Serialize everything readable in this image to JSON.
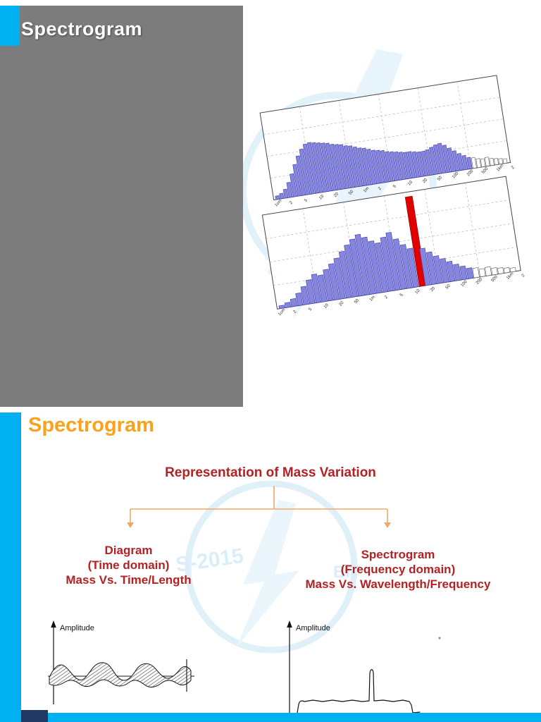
{
  "colors": {
    "cyan": "#00B0F0",
    "gray": "#7C7C7C",
    "orange": "#FAA21B",
    "darkred": "#B22222",
    "connector": "#F0A868",
    "navy": "#1F3864",
    "watermark": "#D2EAF7"
  },
  "slide1": {
    "title": "Spectrogram"
  },
  "slide2": {
    "title": "Spectrogram",
    "heading": "Representation of Mass Variation",
    "left_branch": {
      "line1": "Diagram",
      "line2": "(Time domain)",
      "line3": "Mass Vs. Time/Length"
    },
    "right_branch": {
      "line1": "Spectrogram",
      "line2": "(Frequency domain)",
      "line3": "Mass Vs. Wavelength/Frequency"
    },
    "left_diagram": {
      "ylabel": "Amplitude"
    },
    "right_diagram": {
      "ylabel": "Amplitude"
    }
  },
  "watermark": {
    "year": "2015",
    "frag_left": "S-2015",
    "frag_right": "BIT"
  },
  "chart_data": [
    {
      "type": "bar",
      "name": "spectrogram-upper",
      "x_ticks": [
        "1cm",
        "2",
        "5",
        "10",
        "20",
        "50",
        "1m",
        "2",
        "5",
        "10",
        "20",
        "50",
        "100",
        "200",
        "500",
        "1km",
        "2"
      ],
      "values": [
        4,
        6,
        10,
        17,
        26,
        36,
        45,
        52,
        57,
        58,
        57,
        56,
        55,
        54,
        52,
        51,
        50,
        48,
        47,
        45,
        43,
        42,
        40,
        38,
        37,
        36,
        34,
        33,
        32,
        31,
        30,
        30,
        29,
        28,
        28,
        29,
        31,
        33,
        34,
        31,
        27,
        23,
        19,
        16,
        13
      ],
      "tail_values": [
        12,
        10,
        9,
        10,
        8,
        7,
        6,
        5
      ],
      "red_index": null,
      "bar_color": "#8585DE",
      "bar_stroke": "#3A3AB0",
      "red_color": "#E00000",
      "ylim": [
        0,
        100
      ],
      "grid": true
    },
    {
      "type": "bar",
      "name": "spectrogram-lower-with-fault-peak",
      "x_ticks": [
        "1cm",
        "2",
        "5",
        "10",
        "20",
        "50",
        "1m",
        "2",
        "5",
        "10",
        "20",
        "50",
        "100",
        "200",
        "500",
        "1km",
        "2"
      ],
      "values": [
        3,
        5,
        8,
        13,
        19,
        25,
        30,
        28,
        33,
        38,
        43,
        49,
        55,
        60,
        64,
        60,
        55,
        52,
        57,
        61,
        53,
        46,
        41,
        95,
        39,
        34,
        29,
        25,
        21,
        17,
        14,
        11
      ],
      "tail_values": [
        10,
        8,
        9,
        7,
        6,
        5,
        4
      ],
      "red_index": 23,
      "bar_color": "#8585DE",
      "bar_stroke": "#3A3AB0",
      "red_color": "#E00000",
      "ylim": [
        0,
        100
      ],
      "grid": true
    }
  ]
}
